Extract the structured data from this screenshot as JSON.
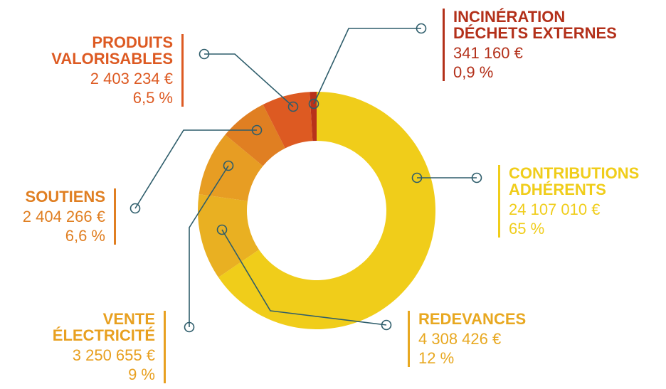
{
  "chart_data": {
    "type": "donut",
    "categories": [
      "CONTRIBUTIONS\nADHÉRENTS",
      "REDEVANCES",
      "VENTE\nÉLECTRICITÉ",
      "SOUTIENS",
      "PRODUITS\nVALORISABLES",
      "INCINÉRATION\nDÉCHETS EXTERNES"
    ],
    "values": [
      24107010,
      4308426,
      3250655,
      2404266,
      2403234,
      341160
    ],
    "value_labels": [
      "24 107 010 €",
      "4 308 426 €",
      "3 250 655 €",
      "2 404 266 €",
      "2 403 234 €",
      "341 160 €"
    ],
    "percents": [
      65,
      12,
      9,
      6.6,
      6.5,
      0.9
    ],
    "percent_labels": [
      "65 %",
      "12 %",
      "9 %",
      "6,6 %",
      "6,5 %",
      "0,9 %"
    ],
    "colors": [
      "#f0cd1a",
      "#e9b022",
      "#e79d23",
      "#e07f22",
      "#dd5a22",
      "#b8321a"
    ],
    "label_colors": [
      "#f0cd1a",
      "#e8a820",
      "#e8a020",
      "#e07f22",
      "#dd5a22",
      "#b3301a"
    ]
  }
}
